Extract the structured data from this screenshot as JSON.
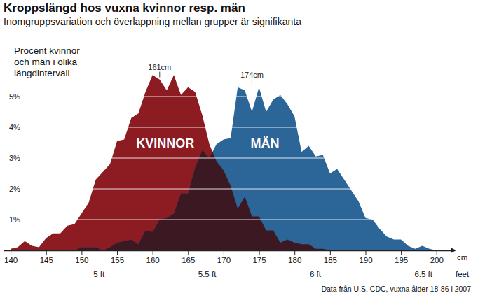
{
  "chart_data": {
    "type": "area",
    "title": "Kroppslängd hos vuxna kvinnor resp. män",
    "subtitle": "Inomgruppsvariation och överlappning mellan grupper är signifikanta",
    "y_label": [
      "Procent kvinnor",
      "och män i olika",
      "längdintervall"
    ],
    "x_label": "cm",
    "x2_label": "feet",
    "source": "Data från U.S. CDC, vuxna ålder 18-86 i 2007",
    "x": [
      140,
      141,
      142,
      143,
      144,
      145,
      146,
      147,
      148,
      149,
      150,
      151,
      152,
      153,
      154,
      155,
      156,
      157,
      158,
      159,
      160,
      161,
      162,
      163,
      164,
      165,
      166,
      167,
      168,
      169,
      170,
      171,
      172,
      173,
      174,
      175,
      176,
      177,
      178,
      179,
      180,
      181,
      182,
      183,
      184,
      185,
      186,
      187,
      188,
      189,
      190,
      191,
      192,
      193,
      194,
      195,
      196,
      197,
      198,
      199,
      200
    ],
    "series": [
      {
        "name": "KVINNOR",
        "color": "#8c1b22",
        "values": [
          0.05,
          0.1,
          0.3,
          0.15,
          0.1,
          0.4,
          0.55,
          0.55,
          0.8,
          0.85,
          1.2,
          1.55,
          2.3,
          2.55,
          2.8,
          3.55,
          3.6,
          4.3,
          4.45,
          5.15,
          5.7,
          5.55,
          5.2,
          5.7,
          5.05,
          5.3,
          5.15,
          4.4,
          3.45,
          2.9,
          2.6,
          2.1,
          1.35,
          1.75,
          1.1,
          1.1,
          0.65,
          0.65,
          0.25,
          0.35,
          0.25,
          0.2,
          0.2,
          0.05,
          0.05,
          0,
          0,
          0,
          0,
          0,
          0,
          0,
          0,
          0,
          0,
          0,
          0,
          0,
          0,
          0,
          0
        ]
      },
      {
        "name": "MÄN",
        "color": "#2c6699",
        "values": [
          0,
          0,
          0,
          0,
          0,
          0,
          0,
          0,
          0,
          0,
          0.1,
          0.1,
          0.1,
          0,
          0.1,
          0.25,
          0.3,
          0.35,
          0.2,
          0.65,
          0.6,
          1.0,
          1.05,
          1.2,
          1.85,
          1.85,
          2.7,
          3.25,
          3.0,
          3.45,
          3.6,
          3.65,
          5.3,
          5.2,
          4.5,
          5.3,
          4.5,
          4.9,
          5.05,
          4.75,
          4.35,
          3.2,
          3.4,
          3.05,
          3.1,
          2.5,
          2.65,
          2.3,
          1.95,
          1.6,
          1.05,
          1.0,
          0.7,
          0.45,
          0.35,
          0.35,
          0.15,
          0.05,
          0.15,
          0.05,
          0
        ]
      }
    ],
    "annotations": [
      {
        "x": 161,
        "y": 5.85,
        "text": "161cm"
      },
      {
        "x": 174,
        "y": 5.6,
        "text": "174cm"
      }
    ],
    "xlim": [
      139,
      202
    ],
    "xticks": [
      140,
      145,
      150,
      155,
      160,
      165,
      170,
      175,
      180,
      185,
      190,
      195,
      200
    ],
    "x2ticks": [
      {
        "value": 152.4,
        "label": "5 ft"
      },
      {
        "value": 167.64,
        "label": "5.5 ft"
      },
      {
        "value": 182.88,
        "label": "6 ft"
      },
      {
        "value": 198.12,
        "label": "6.5 ft"
      }
    ],
    "ylim": [
      0,
      6
    ],
    "yticks": [
      {
        "value": 1,
        "label": "1%"
      },
      {
        "value": 2,
        "label": "2%"
      },
      {
        "value": 3,
        "label": "3%"
      },
      {
        "value": 4,
        "label": "4%"
      },
      {
        "value": 5,
        "label": "5%"
      }
    ],
    "grid": true
  }
}
